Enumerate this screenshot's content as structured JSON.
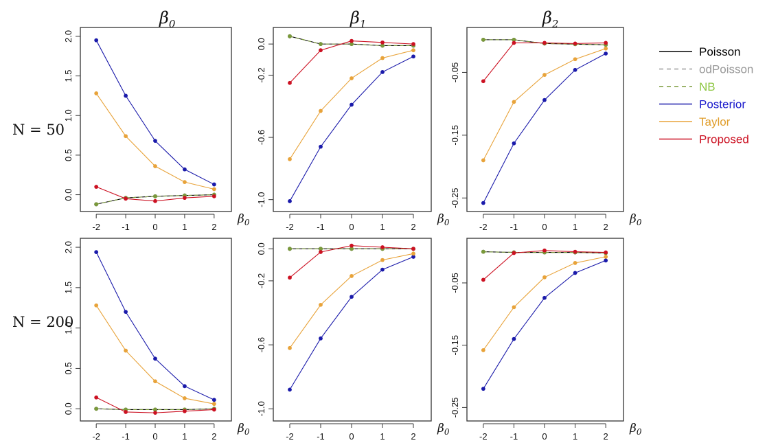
{
  "figure": {
    "column_titles": [
      "β",
      "β",
      "β"
    ],
    "column_title_subscripts": [
      "0",
      "1",
      "2"
    ],
    "row_labels": [
      "N = 50",
      "N = 200"
    ],
    "x_axis_symbol": "β",
    "x_axis_subscript": "0"
  },
  "legend": {
    "placement": "right",
    "entries": [
      {
        "name": "Poisson",
        "color": "#000000",
        "text_color": "#000000",
        "line": "solid"
      },
      {
        "name": "odPoisson",
        "color": "#999999",
        "text_color": "#999999",
        "line": "dashed"
      },
      {
        "name": "NB",
        "color": "#7a9a3a",
        "text_color": "#8dc641",
        "line": "dashed"
      },
      {
        "name": "Posterior",
        "color": "#1a1aaa",
        "text_color": "#1a1acc",
        "line": "solid"
      },
      {
        "name": "Taylor",
        "color": "#e8a33a",
        "text_color": "#e09d2a",
        "line": "solid"
      },
      {
        "name": "Proposed",
        "color": "#cc1122",
        "text_color": "#cc1122",
        "line": "solid"
      }
    ]
  },
  "chart_data": [
    {
      "type": "line",
      "row": "N = 50",
      "column": "β0",
      "x": [
        -2,
        -1,
        0,
        1,
        2
      ],
      "xlim": [
        -2.4,
        2.4
      ],
      "ylim": [
        -0.16,
        2.06
      ],
      "yticks": [
        0.0,
        0.5,
        1.0,
        1.5,
        2.0
      ],
      "ytick_labels": [
        "0.0",
        "0.5",
        "1.0",
        "1.5",
        "2.0"
      ],
      "series": [
        {
          "name": "Poisson",
          "values": [
            -0.12,
            -0.04,
            -0.02,
            -0.01,
            0.0
          ]
        },
        {
          "name": "odPoisson",
          "values": [
            -0.12,
            -0.04,
            -0.02,
            -0.01,
            0.0
          ]
        },
        {
          "name": "NB",
          "values": [
            -0.12,
            -0.04,
            -0.02,
            -0.01,
            0.0
          ]
        },
        {
          "name": "Posterior",
          "values": [
            1.95,
            1.25,
            0.68,
            0.32,
            0.13
          ]
        },
        {
          "name": "Taylor",
          "values": [
            1.28,
            0.74,
            0.36,
            0.16,
            0.07
          ]
        },
        {
          "name": "Proposed",
          "values": [
            0.1,
            -0.05,
            -0.08,
            -0.04,
            -0.02
          ]
        }
      ]
    },
    {
      "type": "line",
      "row": "N = 50",
      "column": "β1",
      "x": [
        -2,
        -1,
        0,
        1,
        2
      ],
      "xlim": [
        -2.4,
        2.4
      ],
      "ylim": [
        -1.05,
        0.08
      ],
      "yticks": [
        0.0,
        -0.2,
        -0.6,
        -1.0
      ],
      "ytick_labels": [
        "0.0",
        "-0.2",
        "-0.6",
        "-1.0"
      ],
      "series": [
        {
          "name": "Poisson",
          "values": [
            0.05,
            0.0,
            0.0,
            -0.01,
            -0.01
          ]
        },
        {
          "name": "odPoisson",
          "values": [
            0.05,
            0.0,
            0.0,
            -0.01,
            -0.01
          ]
        },
        {
          "name": "NB",
          "values": [
            0.05,
            0.0,
            0.0,
            -0.01,
            -0.01
          ]
        },
        {
          "name": "Posterior",
          "values": [
            -1.01,
            -0.66,
            -0.39,
            -0.18,
            -0.08
          ]
        },
        {
          "name": "Taylor",
          "values": [
            -0.74,
            -0.43,
            -0.22,
            -0.09,
            -0.04
          ]
        },
        {
          "name": "Proposed",
          "values": [
            -0.25,
            -0.04,
            0.02,
            0.01,
            0.0
          ]
        }
      ]
    },
    {
      "type": "line",
      "row": "N = 50",
      "column": "β2",
      "x": [
        -2,
        -1,
        0,
        1,
        2
      ],
      "xlim": [
        -2.4,
        2.4
      ],
      "ylim": [
        -0.265,
        0.015
      ],
      "yticks": [
        -0.05,
        -0.15,
        -0.25
      ],
      "ytick_labels": [
        "-0.05",
        "-0.15",
        "-0.25"
      ],
      "series": [
        {
          "name": "Poisson",
          "values": [
            0.002,
            0.002,
            -0.004,
            -0.005,
            -0.006
          ]
        },
        {
          "name": "odPoisson",
          "values": [
            0.002,
            0.002,
            -0.004,
            -0.005,
            -0.006
          ]
        },
        {
          "name": "NB",
          "values": [
            0.002,
            0.002,
            -0.004,
            -0.005,
            -0.006
          ]
        },
        {
          "name": "Posterior",
          "values": [
            -0.258,
            -0.163,
            -0.094,
            -0.046,
            -0.02
          ]
        },
        {
          "name": "Taylor",
          "values": [
            -0.19,
            -0.097,
            -0.054,
            -0.029,
            -0.012
          ]
        },
        {
          "name": "Proposed",
          "values": [
            -0.064,
            -0.003,
            -0.003,
            -0.004,
            -0.003
          ]
        }
      ]
    },
    {
      "type": "line",
      "row": "N = 200",
      "column": "β0",
      "x": [
        -2,
        -1,
        0,
        1,
        2
      ],
      "xlim": [
        -2.4,
        2.4
      ],
      "ylim": [
        -0.1,
        2.06
      ],
      "yticks": [
        0.0,
        0.5,
        1.0,
        1.5,
        2.0
      ],
      "ytick_labels": [
        "0.0",
        "0.5",
        "1.0",
        "1.5",
        "2.0"
      ],
      "series": [
        {
          "name": "Poisson",
          "values": [
            0.0,
            -0.01,
            -0.01,
            -0.01,
            0.0
          ]
        },
        {
          "name": "odPoisson",
          "values": [
            0.0,
            -0.01,
            -0.01,
            -0.01,
            0.0
          ]
        },
        {
          "name": "NB",
          "values": [
            0.0,
            -0.01,
            -0.01,
            -0.01,
            0.0
          ]
        },
        {
          "name": "Posterior",
          "values": [
            1.94,
            1.2,
            0.62,
            0.28,
            0.11
          ]
        },
        {
          "name": "Taylor",
          "values": [
            1.28,
            0.72,
            0.34,
            0.13,
            0.06
          ]
        },
        {
          "name": "Proposed",
          "values": [
            0.14,
            -0.04,
            -0.05,
            -0.03,
            -0.01
          ]
        }
      ]
    },
    {
      "type": "line",
      "row": "N = 200",
      "column": "β1",
      "x": [
        -2,
        -1,
        0,
        1,
        2
      ],
      "xlim": [
        -2.4,
        2.4
      ],
      "ylim": [
        -1.05,
        0.04
      ],
      "yticks": [
        0.0,
        -0.2,
        -0.6,
        -1.0
      ],
      "ytick_labels": [
        "0.0",
        "-0.2",
        "-0.6",
        "-1.0"
      ],
      "series": [
        {
          "name": "Poisson",
          "values": [
            0.0,
            0.0,
            0.0,
            0.0,
            0.0
          ]
        },
        {
          "name": "odPoisson",
          "values": [
            0.0,
            0.0,
            0.0,
            0.0,
            0.0
          ]
        },
        {
          "name": "NB",
          "values": [
            0.0,
            0.0,
            0.0,
            0.0,
            0.0
          ]
        },
        {
          "name": "Posterior",
          "values": [
            -0.88,
            -0.56,
            -0.3,
            -0.13,
            -0.05
          ]
        },
        {
          "name": "Taylor",
          "values": [
            -0.62,
            -0.35,
            -0.17,
            -0.07,
            -0.03
          ]
        },
        {
          "name": "Proposed",
          "values": [
            -0.18,
            -0.02,
            0.02,
            0.01,
            0.0
          ]
        }
      ]
    },
    {
      "type": "line",
      "row": "N = 200",
      "column": "β2",
      "x": [
        -2,
        -1,
        0,
        1,
        2
      ],
      "xlim": [
        -2.4,
        2.4
      ],
      "ylim": [
        -0.265,
        0.015
      ],
      "yticks": [
        -0.05,
        -0.15,
        -0.25
      ],
      "ytick_labels": [
        "-0.05",
        "-0.15",
        "-0.25"
      ],
      "series": [
        {
          "name": "Poisson",
          "values": [
            0.0,
            -0.001,
            -0.001,
            -0.001,
            -0.002
          ]
        },
        {
          "name": "odPoisson",
          "values": [
            0.0,
            -0.001,
            -0.001,
            -0.001,
            -0.002
          ]
        },
        {
          "name": "NB",
          "values": [
            0.0,
            -0.001,
            -0.001,
            -0.001,
            -0.002
          ]
        },
        {
          "name": "Posterior",
          "values": [
            -0.22,
            -0.14,
            -0.074,
            -0.034,
            -0.014
          ]
        },
        {
          "name": "Taylor",
          "values": [
            -0.158,
            -0.089,
            -0.041,
            -0.018,
            -0.008
          ]
        },
        {
          "name": "Proposed",
          "values": [
            -0.045,
            -0.002,
            0.002,
            0.0,
            -0.001
          ]
        }
      ]
    }
  ]
}
